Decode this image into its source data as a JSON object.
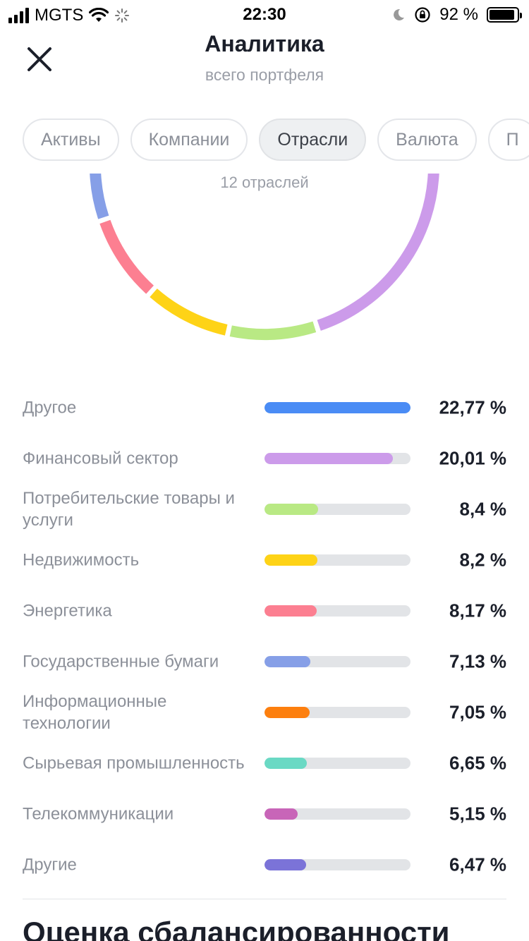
{
  "status_bar": {
    "carrier": "MGTS",
    "time": "22:30",
    "battery": "92 %",
    "battery_level": 0.92
  },
  "header": {
    "title": "Аналитика",
    "subtitle": "всего портфеля"
  },
  "tabs": [
    {
      "label": "Активы",
      "active": false
    },
    {
      "label": "Компании",
      "active": false
    },
    {
      "label": "Отрасли",
      "active": true
    },
    {
      "label": "Валюта",
      "active": false
    },
    {
      "label": "П",
      "active": false
    }
  ],
  "donut": {
    "caption": "12 отраслей"
  },
  "sectors": [
    {
      "name": "Другое",
      "value": "22,77 %",
      "share": 22.77,
      "color": "#4a8cf5"
    },
    {
      "name": "Финансовый сектор",
      "value": "20,01 %",
      "share": 20.01,
      "color": "#cc9bea"
    },
    {
      "name": "Потребительские товары и услуги",
      "value": "8,4 %",
      "share": 8.4,
      "color": "#b9e984"
    },
    {
      "name": "Недвижимость",
      "value": "8,2 %",
      "share": 8.2,
      "color": "#fed317"
    },
    {
      "name": "Энергетика",
      "value": "8,17 %",
      "share": 8.17,
      "color": "#fc7f91"
    },
    {
      "name": "Государственные бумаги",
      "value": "7,13 %",
      "share": 7.13,
      "color": "#869fe7"
    },
    {
      "name": "Информационные технологии",
      "value": "7,05 %",
      "share": 7.05,
      "color": "#fd7f0e"
    },
    {
      "name": "Сырьевая промышленность",
      "value": "6,65 %",
      "share": 6.65,
      "color": "#6ad9c4"
    },
    {
      "name": "Телекоммуникации",
      "value": "5,15 %",
      "share": 5.15,
      "color": "#c865b8"
    },
    {
      "name": "Другие",
      "value": "6,47 %",
      "share": 6.47,
      "color": "#7b73d8"
    }
  ],
  "section": {
    "title": "Оценка сбалансированности"
  }
}
